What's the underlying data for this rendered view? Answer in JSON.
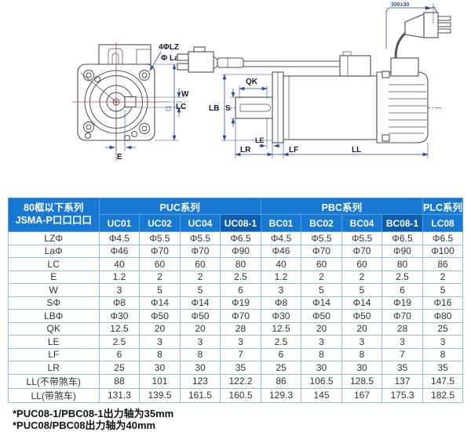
{
  "drawing": {
    "front": {
      "label_holes": "4ΦLZ",
      "label_pilot": "Φ La",
      "label_w": "W",
      "label_lc": "LC",
      "label_e": "E"
    },
    "side": {
      "label_qk": "QK",
      "label_s": "S",
      "label_lb": "LB",
      "label_le": "LE",
      "label_lr": "LR",
      "label_lf": "LF",
      "label_ll": "LL",
      "label_cable": "300±30"
    }
  },
  "table": {
    "corner_header": [
      "80框以下系列",
      "JSMA-P口口口口"
    ],
    "groups": [
      {
        "label": "PUC系列",
        "cols": [
          "UC01",
          "UC02",
          "UC04",
          "UC08-1"
        ]
      },
      {
        "label": "PBC系列",
        "cols": [
          "BC01",
          "BC02",
          "BC04",
          "BC08-1"
        ]
      },
      {
        "label": "PLC系列",
        "cols": [
          "LC08"
        ]
      }
    ],
    "highlighted_columns": [
      "UC08-1",
      "BC08-1"
    ],
    "rows": [
      {
        "label": "LZΦ",
        "values": [
          "Φ4.5",
          "Φ5.5",
          "Φ5.5",
          "Φ6.5",
          "Φ4.5",
          "Φ5.5",
          "Φ5.5",
          "Φ6.5",
          "Φ6.5"
        ]
      },
      {
        "label": "LaΦ",
        "values": [
          "Φ46",
          "Φ70",
          "Φ70",
          "Φ90",
          "Φ46",
          "Φ70",
          "Φ70",
          "Φ90",
          "Φ100"
        ]
      },
      {
        "label": "LC",
        "values": [
          "40",
          "60",
          "60",
          "80",
          "40",
          "60",
          "60",
          "80",
          "86"
        ]
      },
      {
        "label": "E",
        "values": [
          "1.2",
          "2",
          "2",
          "2.5",
          "1.2",
          "2",
          "2",
          "2.5",
          "2"
        ]
      },
      {
        "label": "W",
        "values": [
          "3",
          "5",
          "5",
          "6",
          "3",
          "5",
          "5",
          "6",
          "5"
        ]
      },
      {
        "label": "SΦ",
        "values": [
          "Φ8",
          "Φ14",
          "Φ14",
          "Φ19",
          "Φ8",
          "Φ14",
          "Φ14",
          "Φ19",
          "Φ16"
        ]
      },
      {
        "label": "LBΦ",
        "values": [
          "Φ30",
          "Φ50",
          "Φ50",
          "Φ70",
          "Φ30",
          "Φ50",
          "Φ50",
          "Φ70",
          "Φ80"
        ]
      },
      {
        "label": "QK",
        "values": [
          "12.5",
          "20",
          "20",
          "28",
          "12.5",
          "20",
          "20",
          "28",
          "25"
        ]
      },
      {
        "label": "LE",
        "values": [
          "2.5",
          "3",
          "3",
          "3",
          "2.5",
          "3",
          "3",
          "3",
          "3"
        ]
      },
      {
        "label": "LF",
        "values": [
          "6",
          "8",
          "8",
          "7",
          "6",
          "8",
          "8",
          "7",
          "8"
        ]
      },
      {
        "label": "LR",
        "values": [
          "25",
          "30",
          "30",
          "35",
          "25",
          "30",
          "30",
          "35",
          "35"
        ]
      },
      {
        "label": "LL(不带煞车)",
        "values": [
          "88",
          "101",
          "123",
          "122.2",
          "86",
          "106.5",
          "128.5",
          "137",
          "147.5"
        ]
      },
      {
        "label": "LL(带煞车)",
        "values": [
          "131.3",
          "139.5",
          "161.5",
          "160.5",
          "129.3",
          "145",
          "167",
          "175.3",
          "182.5"
        ]
      }
    ]
  },
  "footnotes": [
    "*PUC08-1/PBC08-1出力轴为35mm",
    "*PUC08/PBC08出力轴为40mm"
  ],
  "colors": {
    "header_blue": "#1878d2",
    "header_dark_blue": "#0d5cad",
    "grid_blue": "#8fbfe8",
    "data_text": "#333333",
    "dim_blue": "#2e4d9e",
    "centerline_red": "#c84848"
  }
}
